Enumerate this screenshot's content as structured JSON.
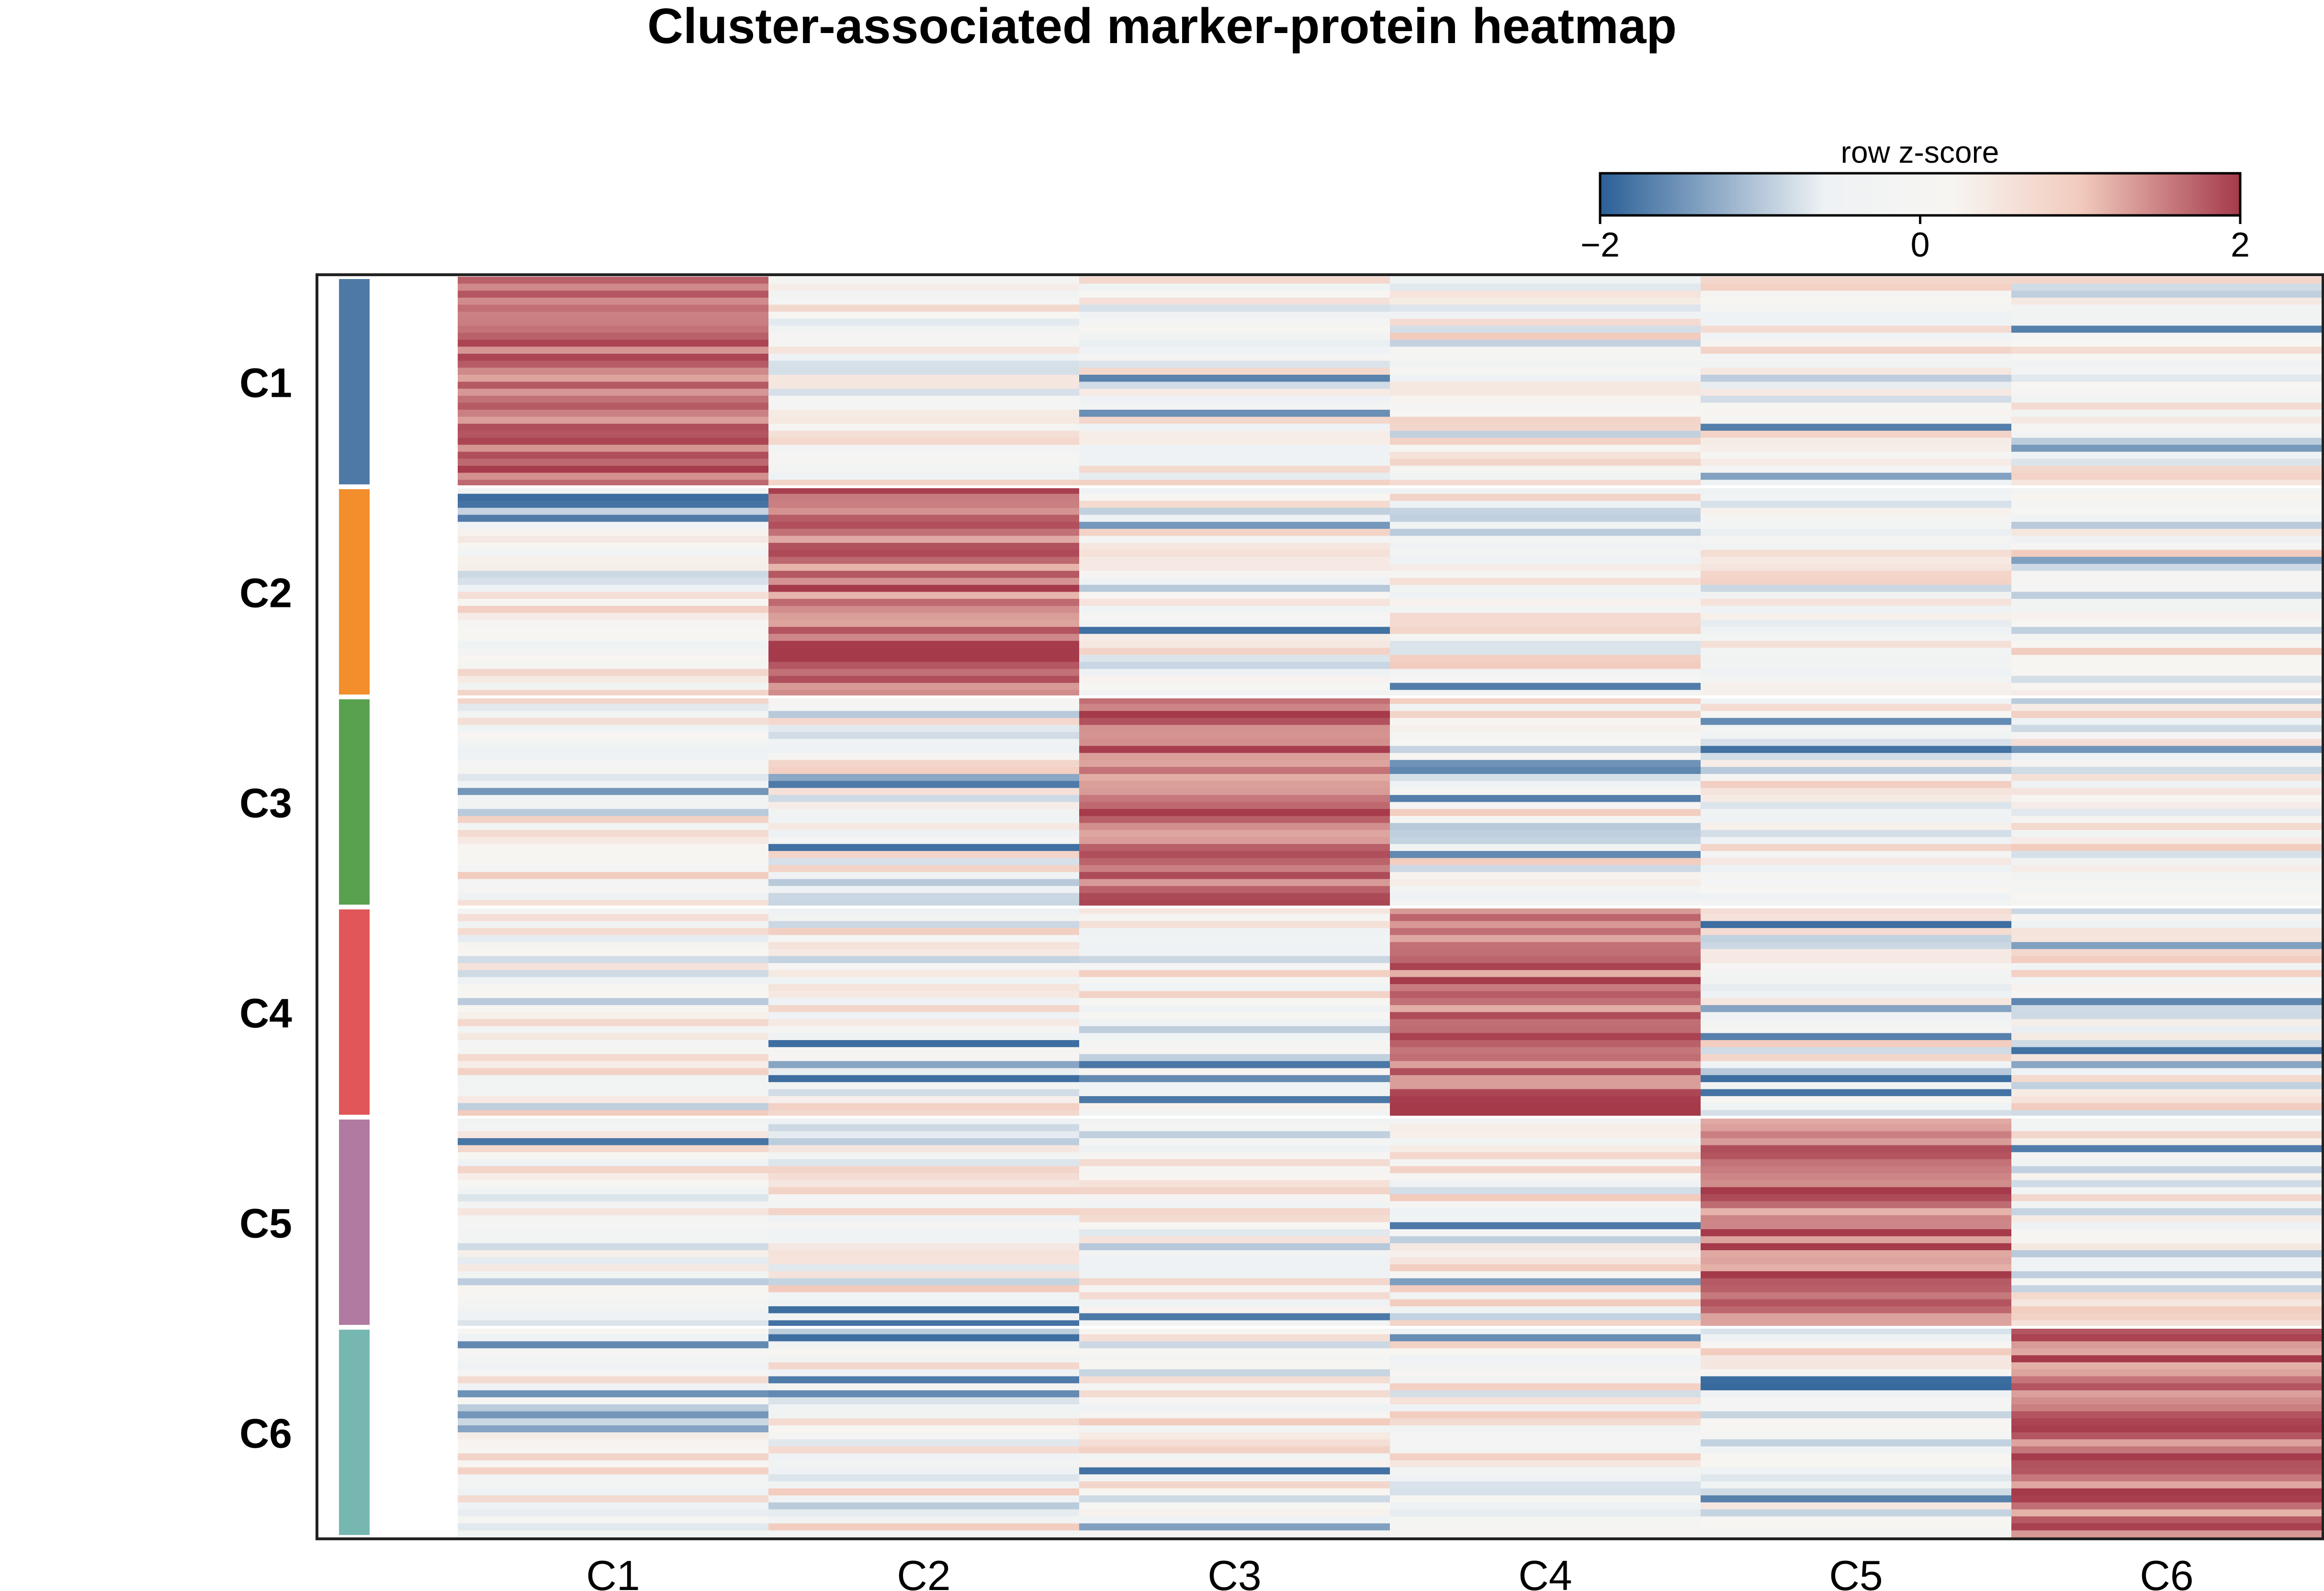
{
  "chart_data": {
    "type": "heatmap",
    "title": "Cluster-associated marker-protein heatmap",
    "columns": [
      "C1",
      "C2",
      "C3",
      "C4",
      "C5",
      "C6"
    ],
    "row_groups": [
      {
        "name": "C1",
        "color": "#4e79a7"
      },
      {
        "name": "C2",
        "color": "#f28e2b"
      },
      {
        "name": "C3",
        "color": "#59a14f"
      },
      {
        "name": "C4",
        "color": "#e15759"
      },
      {
        "name": "C5",
        "color": "#b07aa1"
      },
      {
        "name": "C6",
        "color": "#76b7b2"
      }
    ],
    "rows_per_group": 30,
    "colorbar": {
      "label": "row z-score",
      "range": [
        -2,
        2
      ],
      "ticks": [
        "−2",
        "0",
        "2"
      ],
      "colors": [
        "#2a5f97",
        "#eef2f4",
        "#f6f6f2",
        "#f3d3c6",
        "#a53a4b"
      ],
      "position": "top-right"
    },
    "value_summary": {
      "description_of_pattern": "diagonal blocks: rows of group k are strongly positive in column k, near zero elsewhere",
      "on_block_range": [
        1.2,
        2.0
      ],
      "off_block_range": [
        -1.6,
        0.6
      ]
    }
  }
}
